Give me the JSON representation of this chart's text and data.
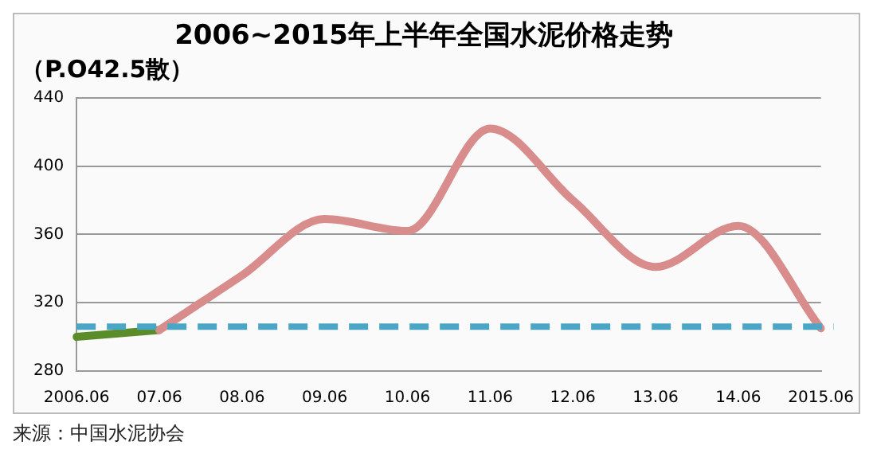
{
  "chart_data": {
    "type": "line",
    "title": "2006~2015年上半年全国水泥价格走势",
    "subtitle": "（P.O42.5散）",
    "categories": [
      "2006.06",
      "07.06",
      "08.06",
      "09.06",
      "10.06",
      "11.06",
      "12.06",
      "13.06",
      "14.06",
      "2015.06"
    ],
    "series": [
      {
        "color": "#d98c8c",
        "values": [
          null,
          304,
          336,
          369,
          362,
          422,
          380,
          341,
          365,
          305
        ]
      },
      {
        "color": "#5b8c2a",
        "values": [
          300,
          304,
          null,
          null,
          null,
          null,
          null,
          null,
          null,
          null
        ]
      }
    ],
    "ylim": [
      280,
      440
    ],
    "yticks": [
      280,
      320,
      360,
      400,
      440
    ],
    "grid": "y",
    "legend": false,
    "marker": "none",
    "line_style": "solid",
    "ref_lines": [
      {
        "axis": "y",
        "value": 306,
        "color": "#4aa6c4",
        "line_style": "dashed"
      }
    ],
    "annotations": [
      "来源：中国水泥协会"
    ]
  }
}
